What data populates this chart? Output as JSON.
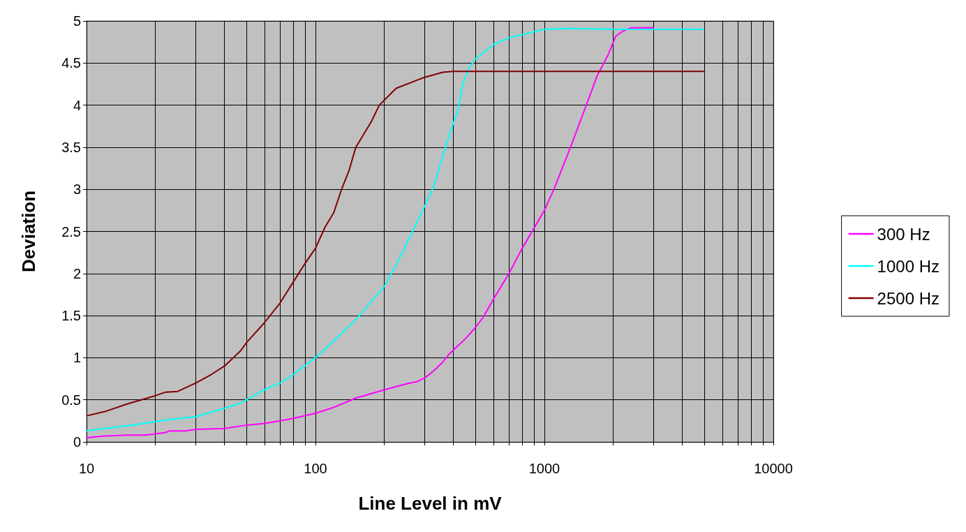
{
  "chart_data": {
    "type": "line",
    "xlabel": "Line Level in mV",
    "ylabel": "Deviation",
    "log": "x",
    "grid": true,
    "legend": "right",
    "marker": "none",
    "line_style": "solid",
    "xlim": [
      10,
      10000
    ],
    "ylim": [
      0,
      5
    ],
    "xticks": [
      10,
      {
        "value": 20,
        "label": null
      },
      {
        "value": 30,
        "label": null
      },
      {
        "value": 40,
        "label": null
      },
      {
        "value": 50,
        "label": null
      },
      {
        "value": 60,
        "label": null
      },
      {
        "value": 70,
        "label": null
      },
      {
        "value": 80,
        "label": null
      },
      {
        "value": 90,
        "label": null
      },
      100,
      {
        "value": 200,
        "label": null
      },
      {
        "value": 300,
        "label": null
      },
      {
        "value": 400,
        "label": null
      },
      {
        "value": 500,
        "label": null
      },
      {
        "value": 600,
        "label": null
      },
      {
        "value": 700,
        "label": null
      },
      {
        "value": 800,
        "label": null
      },
      {
        "value": 900,
        "label": null
      },
      1000,
      {
        "value": 2000,
        "label": null
      },
      {
        "value": 3000,
        "label": null
      },
      {
        "value": 4000,
        "label": null
      },
      {
        "value": 5000,
        "label": null
      },
      {
        "value": 6000,
        "label": null
      },
      {
        "value": 7000,
        "label": null
      },
      {
        "value": 8000,
        "label": null
      },
      {
        "value": 9000,
        "label": null
      },
      10000
    ],
    "yticks": [
      0,
      0.5,
      1,
      1.5,
      2,
      2.5,
      3,
      3.5,
      4,
      4.5,
      5
    ],
    "series": [
      {
        "name": "300 Hz",
        "color": "#ff00ff",
        "x": [
          10,
          12,
          15,
          18,
          22,
          23,
          27,
          30,
          40,
          50,
          60,
          70,
          80,
          100,
          120,
          150,
          200,
          250,
          280,
          300,
          330,
          360,
          380,
          410,
          450,
          500,
          540,
          600,
          700,
          800,
          1000,
          1100,
          1300,
          1500,
          1700,
          1900,
          2050,
          2200,
          2400,
          3000
        ],
        "values": [
          0.05,
          0.07,
          0.08,
          0.08,
          0.11,
          0.13,
          0.13,
          0.15,
          0.16,
          0.2,
          0.22,
          0.25,
          0.28,
          0.34,
          0.41,
          0.52,
          0.62,
          0.69,
          0.72,
          0.76,
          0.85,
          0.95,
          1.03,
          1.12,
          1.22,
          1.36,
          1.48,
          1.7,
          2.0,
          2.3,
          2.75,
          3.0,
          3.5,
          3.95,
          4.35,
          4.6,
          4.82,
          4.88,
          4.92,
          4.92
        ]
      },
      {
        "name": "1000 Hz",
        "color": "#00ffff",
        "x": [
          10,
          12,
          15,
          20,
          22,
          30,
          40,
          47,
          50,
          60,
          70,
          80,
          100,
          120,
          150,
          200,
          230,
          260,
          300,
          330,
          360,
          390,
          420,
          440,
          470,
          500,
          600,
          700,
          1000,
          1300,
          2000,
          5000
        ],
        "values": [
          0.13,
          0.16,
          0.19,
          0.24,
          0.26,
          0.3,
          0.4,
          0.46,
          0.5,
          0.62,
          0.7,
          0.8,
          1.0,
          1.2,
          1.45,
          1.85,
          2.15,
          2.45,
          2.8,
          3.05,
          3.4,
          3.7,
          3.95,
          4.25,
          4.45,
          4.55,
          4.72,
          4.8,
          4.9,
          4.91,
          4.9,
          4.9
        ]
      },
      {
        "name": "2500 Hz",
        "color": "#800000",
        "x": [
          10,
          12,
          15,
          20,
          22,
          25,
          30,
          35,
          40,
          47,
          50,
          60,
          70,
          80,
          90,
          100,
          110,
          120,
          130,
          140,
          150,
          175,
          190,
          225,
          280,
          300,
          360,
          400,
          5000
        ],
        "values": [
          0.31,
          0.36,
          0.45,
          0.55,
          0.59,
          0.6,
          0.7,
          0.8,
          0.9,
          1.08,
          1.18,
          1.42,
          1.65,
          1.9,
          2.12,
          2.3,
          2.55,
          2.72,
          3.0,
          3.22,
          3.5,
          3.8,
          4.0,
          4.2,
          4.3,
          4.33,
          4.39,
          4.4,
          4.4
        ]
      }
    ]
  }
}
